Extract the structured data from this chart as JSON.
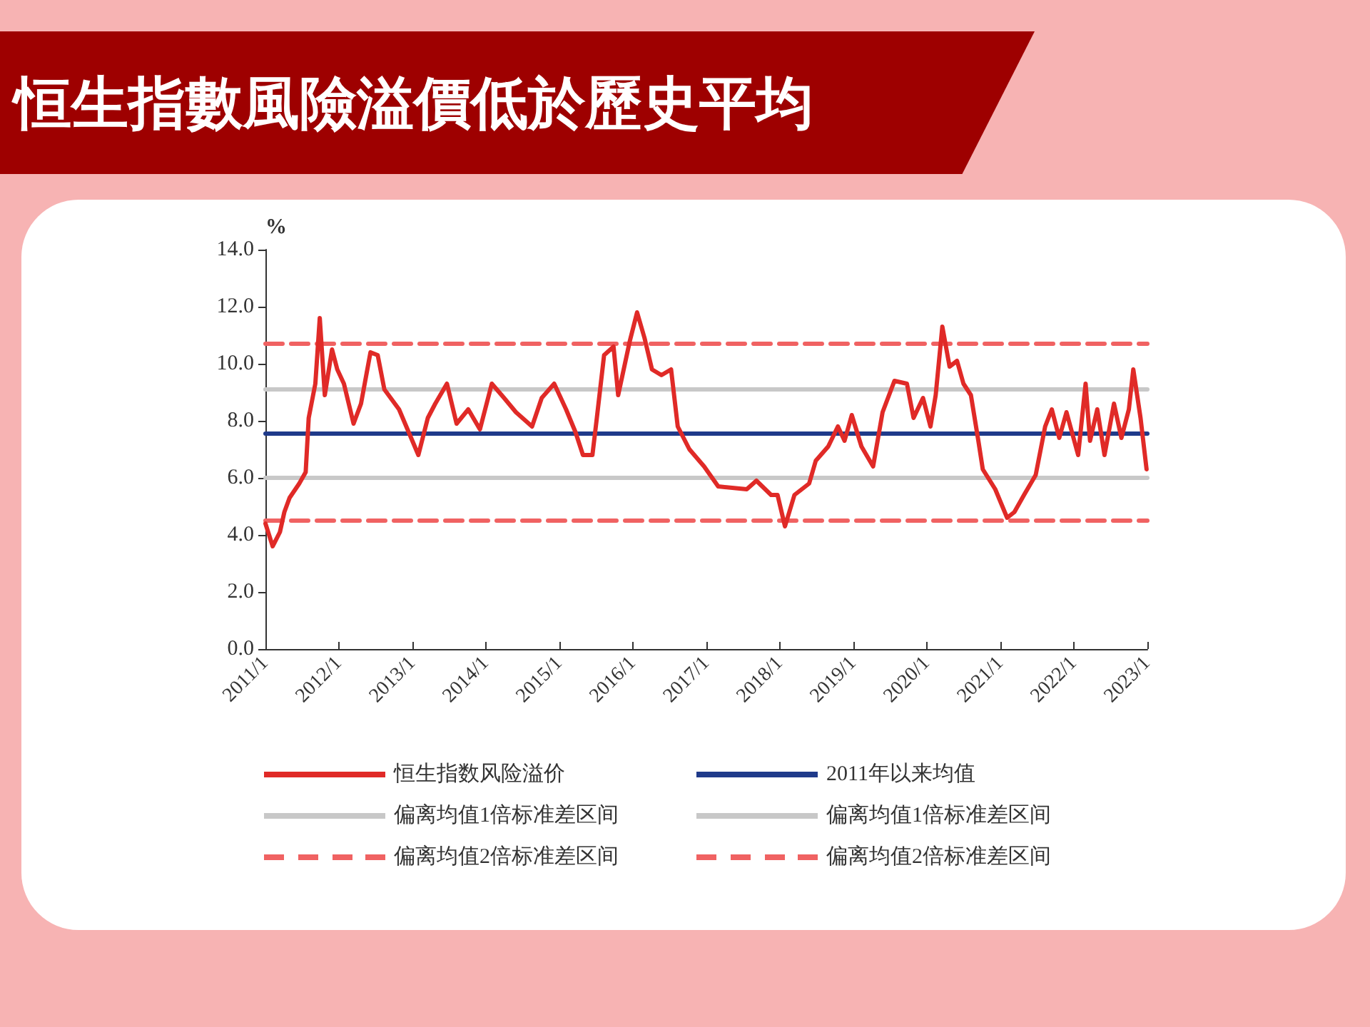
{
  "chart_data": {
    "type": "line",
    "title": "恒生指數風險溢價低於歷史平均",
    "ylabel": "%",
    "ylim": [
      0,
      14
    ],
    "yticks": [
      {
        "value": 0,
        "label": "0.0"
      },
      {
        "value": 2,
        "label": "2.0"
      },
      {
        "value": 4,
        "label": "4.0"
      },
      {
        "value": 6,
        "label": "6.0"
      },
      {
        "value": 8,
        "label": "8.0"
      },
      {
        "value": 10,
        "label": "10.0"
      },
      {
        "value": 12,
        "label": "12.0"
      },
      {
        "value": 14,
        "label": "14.0"
      }
    ],
    "xlim": [
      "2011-01-01",
      "2023-01-01"
    ],
    "xticks": [
      {
        "value": "2011-01-01",
        "label": "2011/1"
      },
      {
        "value": "2012-01-01",
        "label": "2012/1"
      },
      {
        "value": "2013-01-01",
        "label": "2013/1"
      },
      {
        "value": "2014-01-01",
        "label": "2014/1"
      },
      {
        "value": "2015-01-01",
        "label": "2015/1"
      },
      {
        "value": "2016-01-01",
        "label": "2016/1"
      },
      {
        "value": "2017-01-01",
        "label": "2017/1"
      },
      {
        "value": "2018-01-01",
        "label": "2018/1"
      },
      {
        "value": "2019-01-01",
        "label": "2019/1"
      },
      {
        "value": "2020-01-01",
        "label": "2020/1"
      },
      {
        "value": "2021-01-01",
        "label": "2021/1"
      },
      {
        "value": "2022-01-01",
        "label": "2022/1"
      },
      {
        "value": "2023-01-01",
        "label": "2023/1"
      }
    ],
    "grid": false,
    "legend": "bottom",
    "marker": "none",
    "series": [
      {
        "name": "恒生指数风险溢价",
        "color": "#e02a27",
        "line_style": "solid",
        "x": [
          "2011-01-01",
          "2011-02-06",
          "2011-03-14",
          "2011-04-05",
          "2011-05-01",
          "2011-06-18",
          "2011-07-20",
          "2011-08-04",
          "2011-09-06",
          "2011-09-28",
          "2011-10-23",
          "2011-11-28",
          "2011-12-24",
          "2012-01-26",
          "2012-03-14",
          "2012-04-20",
          "2012-06-06",
          "2012-07-12",
          "2012-08-14",
          "2012-10-26",
          "2012-12-13",
          "2013-01-30",
          "2013-03-18",
          "2013-04-24",
          "2013-06-21",
          "2013-08-08",
          "2013-10-05",
          "2013-12-02",
          "2014-01-30",
          "2014-04-01",
          "2014-05-30",
          "2014-08-18",
          "2014-10-05",
          "2014-12-06",
          "2015-02-03",
          "2015-03-22",
          "2015-04-28",
          "2015-06-14",
          "2015-07-06",
          "2015-08-11",
          "2015-09-27",
          "2015-10-20",
          "2015-12-17",
          "2016-01-22",
          "2016-02-28",
          "2016-04-05",
          "2016-05-22",
          "2016-07-09",
          "2016-08-11",
          "2016-10-08",
          "2016-12-20",
          "2017-02-28",
          "2017-07-20",
          "2017-09-06",
          "2017-11-18",
          "2017-12-20",
          "2018-01-26",
          "2018-03-14",
          "2018-05-26",
          "2018-06-28",
          "2018-08-29",
          "2018-10-16",
          "2018-11-18",
          "2018-12-24",
          "2019-02-10",
          "2019-04-09",
          "2019-05-26",
          "2019-07-24",
          "2019-09-24",
          "2019-10-27",
          "2019-12-13",
          "2020-01-19",
          "2020-02-14",
          "2020-03-18",
          "2020-04-23",
          "2020-05-30",
          "2020-07-01",
          "2020-08-07",
          "2020-09-13",
          "2020-10-05",
          "2020-12-06",
          "2021-02-03",
          "2021-03-11",
          "2021-04-28",
          "2021-06-25",
          "2021-08-11",
          "2021-09-13",
          "2021-10-20",
          "2021-11-25",
          "2022-01-22",
          "2022-02-28",
          "2022-03-22",
          "2022-04-27",
          "2022-06-02",
          "2022-07-19",
          "2022-08-25",
          "2022-10-01",
          "2022-10-23",
          "2022-11-28",
          "2022-12-28"
        ],
        "values": [
          4.4,
          3.6,
          4.1,
          4.8,
          5.3,
          5.8,
          6.2,
          8.1,
          9.3,
          11.6,
          8.9,
          10.5,
          9.8,
          9.3,
          7.9,
          8.6,
          10.4,
          10.3,
          9.1,
          8.4,
          7.6,
          6.8,
          8.1,
          8.6,
          9.3,
          7.9,
          8.4,
          7.7,
          9.3,
          8.8,
          8.3,
          7.8,
          8.8,
          9.3,
          8.4,
          7.6,
          6.8,
          6.8,
          8.1,
          10.3,
          10.6,
          8.9,
          10.8,
          11.8,
          10.9,
          9.8,
          9.6,
          9.8,
          7.8,
          7.0,
          6.4,
          5.7,
          5.6,
          5.9,
          5.4,
          5.4,
          4.3,
          5.4,
          5.8,
          6.6,
          7.1,
          7.8,
          7.3,
          8.2,
          7.1,
          6.4,
          8.3,
          9.4,
          9.3,
          8.1,
          8.8,
          7.8,
          8.9,
          11.3,
          9.9,
          10.1,
          9.3,
          8.9,
          7.3,
          6.3,
          5.6,
          4.6,
          4.8,
          5.4,
          6.1,
          7.8,
          8.4,
          7.4,
          8.3,
          6.8,
          9.3,
          7.3,
          8.4,
          6.8,
          8.6,
          7.4,
          8.4,
          9.8,
          8.1,
          6.3
        ]
      },
      {
        "name": "2011年以来均值",
        "color": "#1f3a8a",
        "line_style": "solid",
        "x": [
          "2011-01-01",
          "2023-01-01"
        ],
        "values": [
          7.55,
          7.55
        ]
      },
      {
        "name": "偏离均值1倍标准差区间",
        "color": "#c8c8c8",
        "line_style": "solid",
        "x": [
          "2011-01-01",
          "2023-01-01"
        ],
        "values": [
          9.1,
          9.1
        ]
      },
      {
        "name": "偏离均值1倍标准差区间",
        "color": "#c8c8c8",
        "line_style": "solid",
        "x": [
          "2011-01-01",
          "2023-01-01"
        ],
        "values": [
          6.0,
          6.0
        ]
      },
      {
        "name": "偏离均值2倍标准差区间",
        "color": "#f06262",
        "line_style": "dashed",
        "x": [
          "2011-01-01",
          "2023-01-01"
        ],
        "values": [
          10.7,
          10.7
        ]
      },
      {
        "name": "偏离均值2倍标准差区间",
        "color": "#f06262",
        "line_style": "dashed",
        "x": [
          "2011-01-01",
          "2023-01-01"
        ],
        "values": [
          4.5,
          4.5
        ]
      }
    ]
  }
}
